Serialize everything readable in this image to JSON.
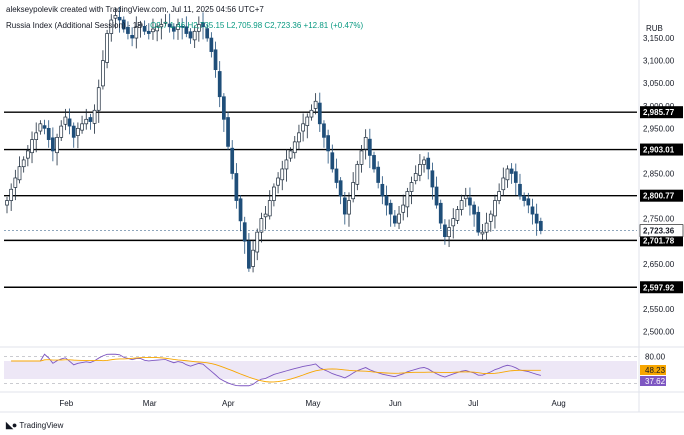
{
  "caption": "alekseypolevik created with TradingView.com, Jul 11, 2025 04:56 UTC+7",
  "legend": {
    "symbol": "Russia Index (Additional Session) · 1D ·",
    "ohlc": "O2,7 1.46  H2,735.15  L2,705.98  C2,723.36  +12.81 (+0.47%)"
  },
  "currency": "RUB",
  "brand": "TradingView",
  "icons": {
    "logo": "tradingview-logo-icon"
  },
  "colors": {
    "up": "#089981",
    "down": "#1f4e79",
    "level": "#000000",
    "rsi": "#7e57c2",
    "rsi_ma": "#f7a600",
    "rsi_band": "#ede7f6"
  },
  "chart_data": {
    "type": "candlestick",
    "ylim": [
      2470,
      3190
    ],
    "y_ticks": [
      2500,
      2550,
      2600,
      2650,
      2700,
      2750,
      2800,
      2850,
      2900,
      2950,
      3000,
      3050,
      3100,
      3150
    ],
    "y_tick_labels": [
      "2,500.00",
      "2,550.00",
      "2,600.00",
      "2,650.00",
      "2,700.00",
      "2,750.00",
      "2,800.00",
      "2,850.00",
      "2,900.00",
      "2,950.00",
      "3,000.00",
      "3,050.00",
      "3,100.00",
      "3,150.00"
    ],
    "x_labels": [
      "Feb",
      "Mar",
      "Apr",
      "May",
      "Jun",
      "Jul",
      "Aug"
    ],
    "levels": [
      {
        "value": 2985.77,
        "label": "2,985.77"
      },
      {
        "value": 2903.01,
        "label": "2,903.01"
      },
      {
        "value": 2800.77,
        "label": "2,800.77"
      },
      {
        "value": 2701.78,
        "label": "2,701.78"
      },
      {
        "value": 2597.92,
        "label": "2,597.92"
      }
    ],
    "last_price": {
      "value": 2723.36,
      "label": "2,723.36"
    },
    "closes": [
      2790,
      2815,
      2840,
      2865,
      2880,
      2900,
      2925,
      2940,
      2960,
      2950,
      2925,
      2900,
      2930,
      2955,
      2975,
      2955,
      2930,
      2950,
      2960,
      2970,
      2965,
      2990,
      3040,
      3100,
      3160,
      3190,
      3200,
      3190,
      3170,
      3160,
      3150,
      3175,
      3180,
      3165,
      3160,
      3170,
      3175,
      3180,
      3185,
      3175,
      3165,
      3180,
      3175,
      3160,
      3150,
      3165,
      3180,
      3175,
      3150,
      3120,
      3080,
      3020,
      2970,
      2910,
      2850,
      2790,
      2745,
      2700,
      2640,
      2680,
      2720,
      2750,
      2760,
      2790,
      2820,
      2840,
      2860,
      2880,
      2900,
      2920,
      2940,
      2960,
      2975,
      2990,
      3010,
      2960,
      2930,
      2900,
      2860,
      2830,
      2800,
      2760,
      2790,
      2830,
      2870,
      2900,
      2930,
      2890,
      2860,
      2830,
      2800,
      2780,
      2760,
      2740,
      2760,
      2780,
      2810,
      2830,
      2850,
      2870,
      2880,
      2860,
      2820,
      2780,
      2740,
      2710,
      2730,
      2750,
      2770,
      2790,
      2800,
      2780,
      2760,
      2720,
      2720,
      2740,
      2760,
      2790,
      2810,
      2840,
      2860,
      2850,
      2830,
      2800,
      2790,
      2780,
      2760,
      2740,
      2723.36
    ],
    "x_tick_index": [
      14,
      34,
      53,
      73,
      93,
      112,
      132
    ],
    "rsi": {
      "ylim": [
        10,
        90
      ],
      "upper_band": 80,
      "lower_band": 20,
      "band_top": 70,
      "band_bottom": 30,
      "labels": [
        {
          "value": 80,
          "label": "80.00"
        }
      ],
      "rsi_value": {
        "value": 48.23,
        "label": "48.23"
      },
      "rsi_ma_value": {
        "value": 37.62,
        "label": "37.62"
      }
    }
  }
}
